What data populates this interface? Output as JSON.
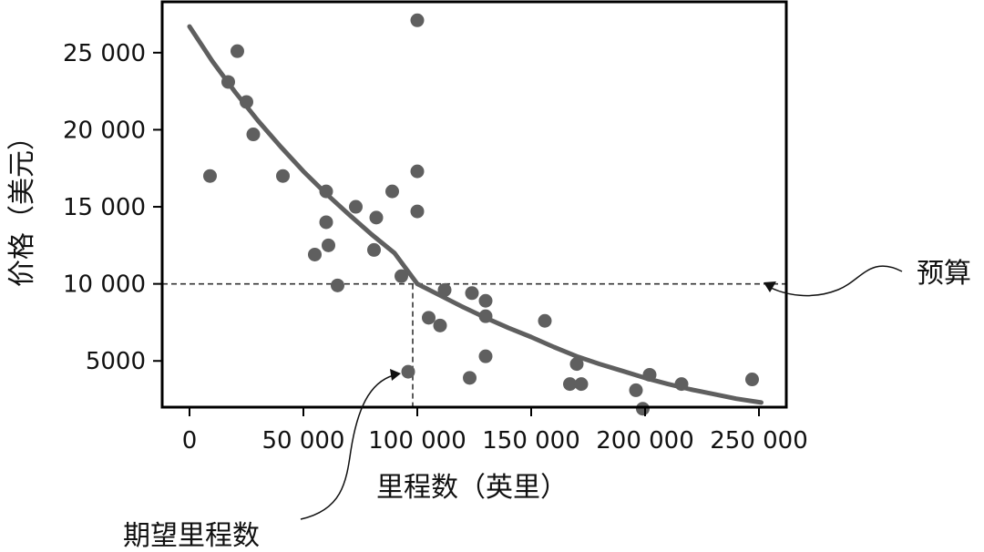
{
  "chart_data": {
    "type": "scatter",
    "xlabel": "里程数（英里）",
    "ylabel": "价格（美元）",
    "xlim": [
      -12000,
      262000
    ],
    "ylim": [
      2000,
      28300
    ],
    "x_ticks": [
      {
        "value": 0,
        "label": "0"
      },
      {
        "value": 50000,
        "label": "50 000"
      },
      {
        "value": 100000,
        "label": "100 000"
      },
      {
        "value": 150000,
        "label": "150 000"
      },
      {
        "value": 200000,
        "label": "200 000"
      },
      {
        "value": 250000,
        "label": "250 000"
      }
    ],
    "y_ticks": [
      {
        "value": 5000,
        "label": "5000"
      },
      {
        "value": 10000,
        "label": "10 000"
      },
      {
        "value": 15000,
        "label": "15 000"
      },
      {
        "value": 20000,
        "label": "20 000"
      },
      {
        "value": 25000,
        "label": "25 000"
      }
    ],
    "grid": false,
    "points": [
      {
        "x": 9000,
        "y": 17000
      },
      {
        "x": 17000,
        "y": 23100
      },
      {
        "x": 21000,
        "y": 25100
      },
      {
        "x": 25000,
        "y": 21800
      },
      {
        "x": 28000,
        "y": 19700
      },
      {
        "x": 41000,
        "y": 17000
      },
      {
        "x": 55000,
        "y": 11900
      },
      {
        "x": 60000,
        "y": 16000
      },
      {
        "x": 60000,
        "y": 14000
      },
      {
        "x": 61000,
        "y": 12500
      },
      {
        "x": 65000,
        "y": 9900
      },
      {
        "x": 73000,
        "y": 15000
      },
      {
        "x": 81000,
        "y": 12200
      },
      {
        "x": 82000,
        "y": 14300
      },
      {
        "x": 89000,
        "y": 16000
      },
      {
        "x": 93000,
        "y": 10500
      },
      {
        "x": 96000,
        "y": 4300
      },
      {
        "x": 100000,
        "y": 27100
      },
      {
        "x": 100000,
        "y": 17300
      },
      {
        "x": 100000,
        "y": 14700
      },
      {
        "x": 105000,
        "y": 7800
      },
      {
        "x": 110000,
        "y": 7300
      },
      {
        "x": 112000,
        "y": 9600
      },
      {
        "x": 123000,
        "y": 3900
      },
      {
        "x": 124000,
        "y": 9400
      },
      {
        "x": 130000,
        "y": 8900
      },
      {
        "x": 130000,
        "y": 7900
      },
      {
        "x": 130000,
        "y": 5300
      },
      {
        "x": 156000,
        "y": 7600
      },
      {
        "x": 167000,
        "y": 3500
      },
      {
        "x": 170000,
        "y": 4800
      },
      {
        "x": 172000,
        "y": 3500
      },
      {
        "x": 196000,
        "y": 3100
      },
      {
        "x": 199000,
        "y": 1900
      },
      {
        "x": 202000,
        "y": 4100
      },
      {
        "x": 216000,
        "y": 3500
      },
      {
        "x": 247000,
        "y": 3800
      }
    ],
    "fit_curve": {
      "type": "exponential_decay",
      "x": [
        0,
        10000,
        20000,
        30000,
        40000,
        50000,
        60000,
        70000,
        80000,
        90000,
        100000,
        110000,
        120000,
        130000,
        140000,
        150000,
        160000,
        170000,
        180000,
        190000,
        200000,
        210000,
        220000,
        230000,
        240000,
        251000
      ],
      "y": [
        26700,
        24450,
        22450,
        20600,
        18900,
        17300,
        15850,
        14500,
        13200,
        12000,
        10000,
        9250,
        8500,
        7800,
        7150,
        6550,
        5900,
        5300,
        4800,
        4350,
        3900,
        3500,
        3150,
        2850,
        2550,
        2300
      ]
    },
    "reference_lines": [
      {
        "orientation": "horizontal",
        "value": 10000,
        "style": "dashed",
        "extent": "full"
      },
      {
        "orientation": "vertical",
        "value": 98000,
        "style": "dashed",
        "extent": "to-bottom-from-y",
        "from_y": 10000
      }
    ],
    "annotations": [
      {
        "text": "预算",
        "target": "horizontal-reference-line",
        "placement": "right"
      },
      {
        "text": "期望里程数",
        "target": "vertical-reference-line",
        "placement": "bottom-left"
      }
    ],
    "colors": {
      "points": "#5f5f5f",
      "curve": "#5f5f5f",
      "axes": "#000000",
      "reference": "#333333"
    }
  }
}
